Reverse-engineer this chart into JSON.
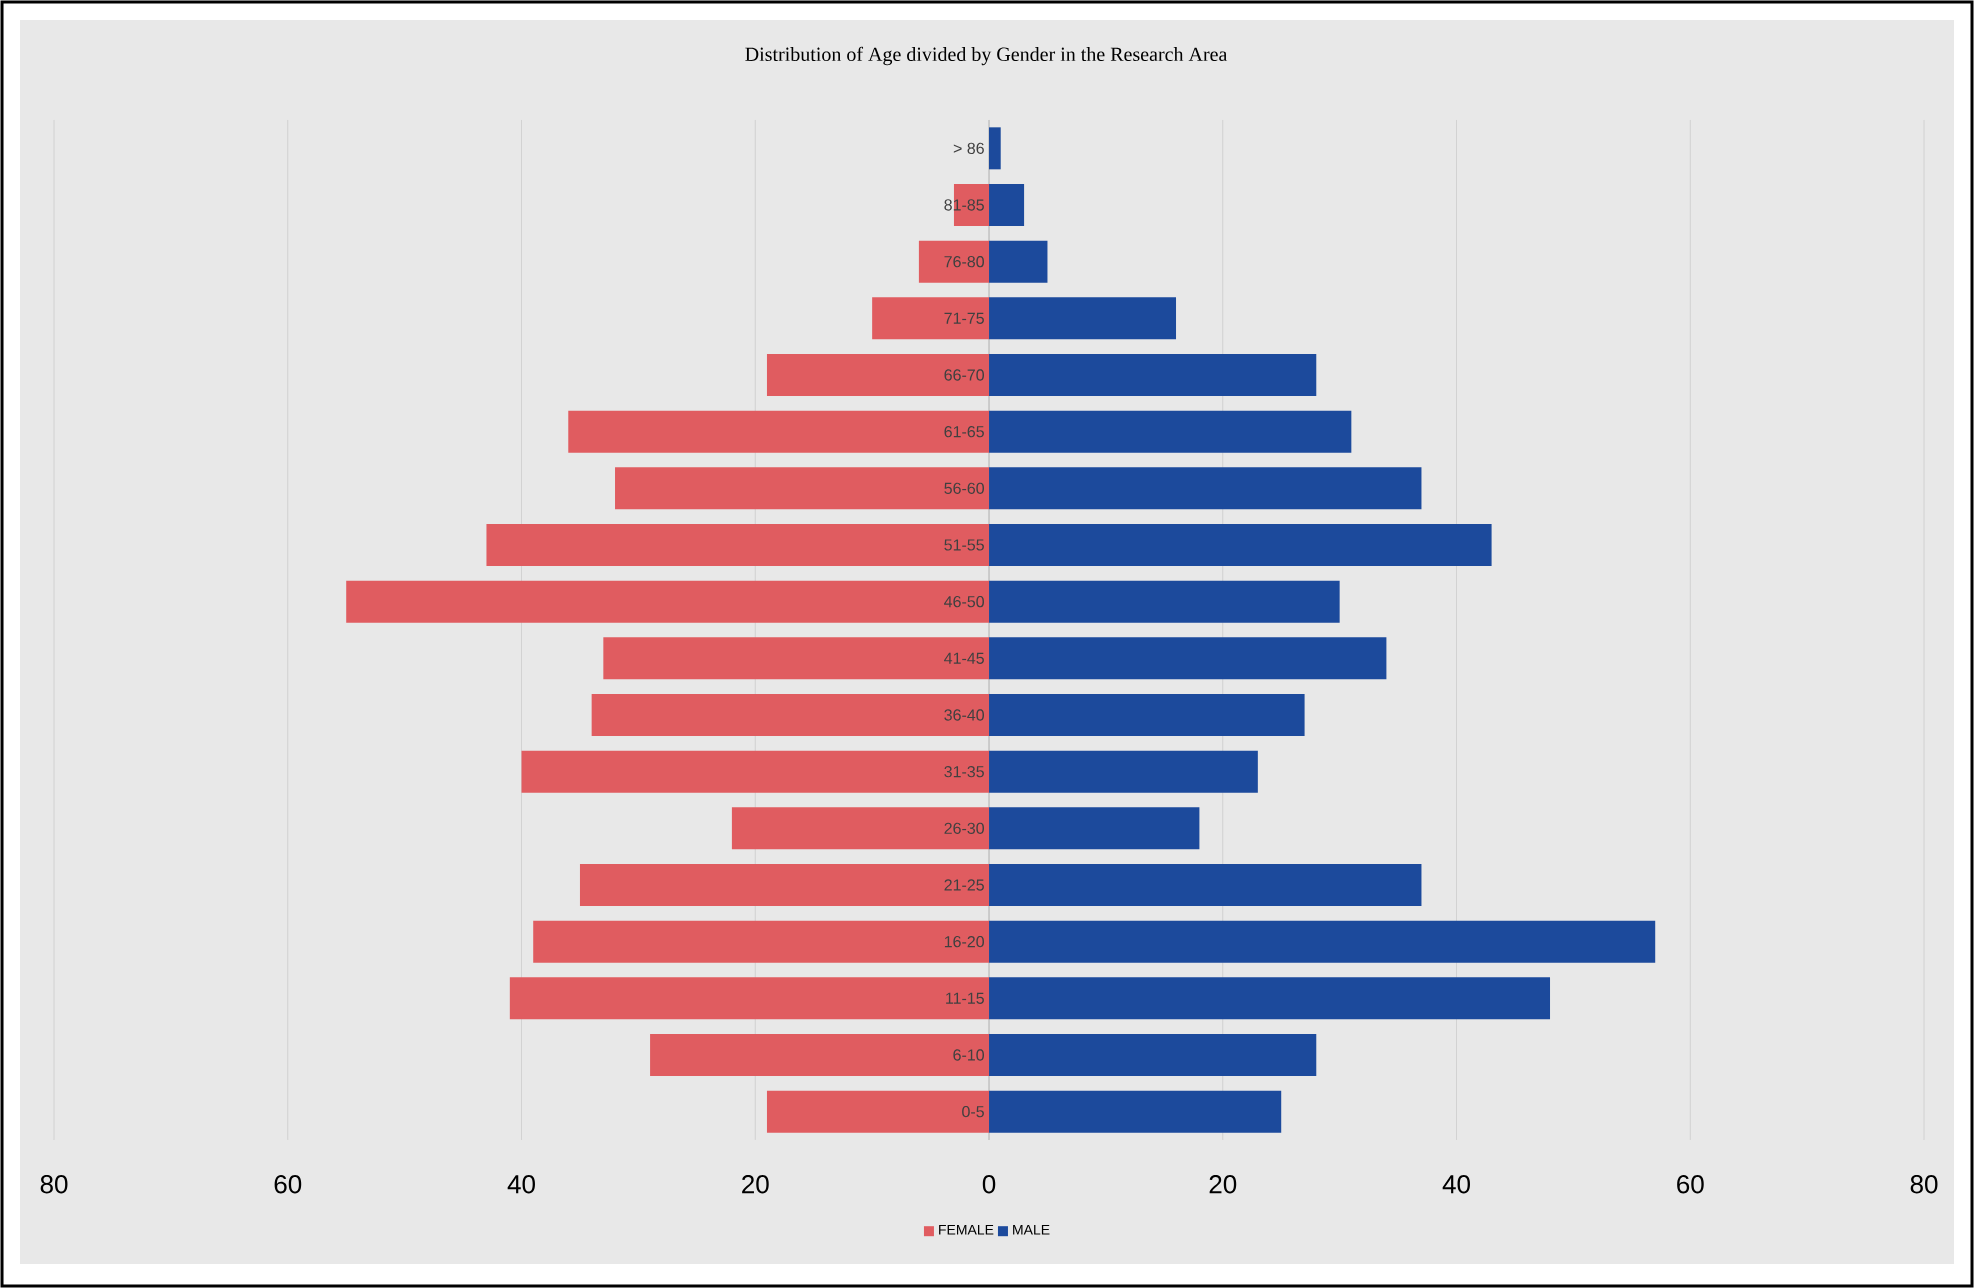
{
  "chart_data": {
    "type": "bar",
    "orientation": "horizontal",
    "stacked": true,
    "title": "Distribution of Age divided by Gender in the Research Area",
    "categories": [
      "> 86",
      "81-85",
      "76-80",
      "71-75",
      "66-70",
      "61-65",
      "56-60",
      "51-55",
      "46-50",
      "41-45",
      "36-40",
      "31-35",
      "26-30",
      "21-25",
      "16-20",
      "11-15",
      "6-10",
      "0-5"
    ],
    "series": [
      {
        "name": "FEMALE",
        "color": "#e05c60",
        "values": [
          0,
          -3,
          -6,
          -10,
          -19,
          -36,
          -32,
          -43,
          -55,
          -33,
          -34,
          -40,
          -22,
          -35,
          -39,
          -41,
          -29,
          -19
        ]
      },
      {
        "name": "MALE",
        "color": "#1c4a9c",
        "values": [
          1,
          3,
          5,
          16,
          28,
          31,
          37,
          43,
          30,
          34,
          27,
          23,
          18,
          37,
          57,
          48,
          28,
          25
        ]
      }
    ],
    "xlim": [
      -80,
      80
    ],
    "xticks": [
      {
        "value": -80,
        "label": "80"
      },
      {
        "value": -60,
        "label": "60"
      },
      {
        "value": -40,
        "label": "40"
      },
      {
        "value": -20,
        "label": "20"
      },
      0,
      20,
      40,
      60,
      80
    ],
    "grid": "x",
    "legend": "bottom"
  }
}
